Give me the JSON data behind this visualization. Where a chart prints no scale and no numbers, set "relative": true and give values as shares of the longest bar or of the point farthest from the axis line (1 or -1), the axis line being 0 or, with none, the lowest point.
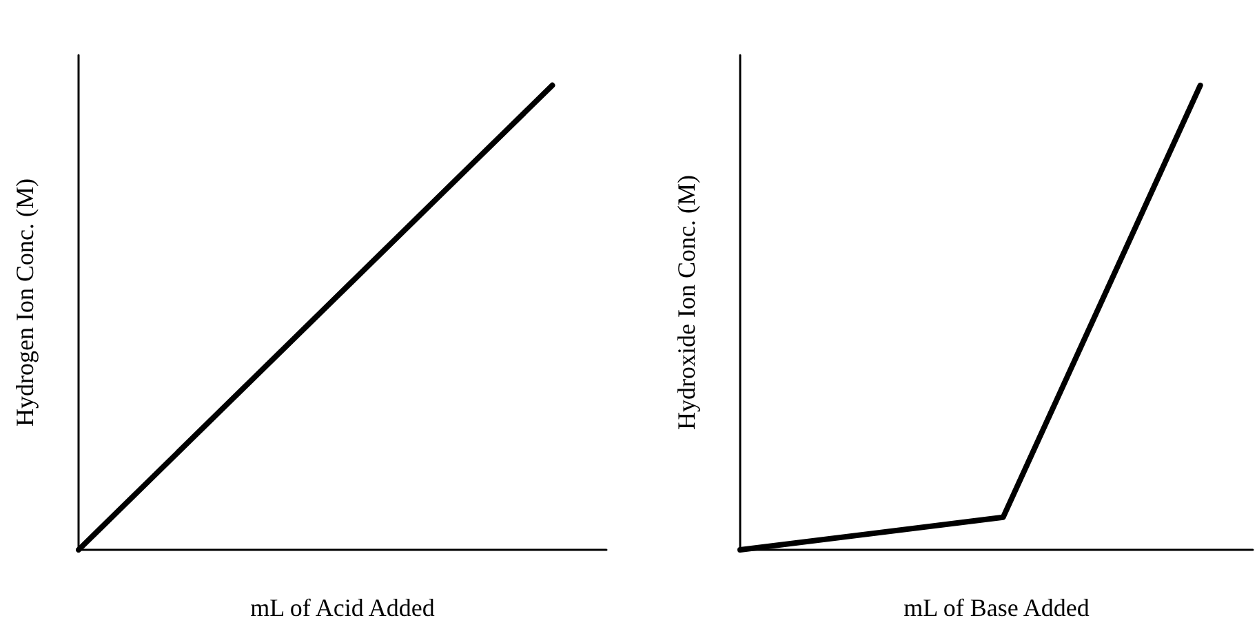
{
  "chart_data": [
    {
      "type": "line",
      "relative": true,
      "xlabel": "mL of Acid Added",
      "ylabel": "Hydrogen Ion Conc. (M)",
      "marker": "none",
      "grid": false,
      "categories": [
        null,
        null,
        null,
        null,
        null,
        null,
        null,
        null,
        null,
        null,
        null,
        null,
        null,
        null,
        null,
        null,
        null,
        null,
        null,
        null,
        null,
        null,
        null,
        null,
        null,
        null,
        null,
        null,
        null,
        null,
        null,
        null,
        null,
        null,
        null,
        null,
        null,
        null,
        null,
        null
      ],
      "series": [
        {
          "color": "#000000",
          "values": [
            0,
            null,
            null,
            null,
            null,
            null,
            null,
            null,
            null,
            null,
            null,
            null,
            null,
            null,
            null,
            null,
            null,
            null,
            null,
            null,
            null,
            null,
            null,
            null,
            null,
            null,
            null,
            null,
            null,
            null,
            null,
            null,
            null,
            null,
            null,
            1,
            null,
            null,
            null,
            null
          ]
        }
      ]
    },
    {
      "type": "line",
      "relative": true,
      "xlabel": "mL of Base Added",
      "ylabel": "Hydroxide Ion Conc. (M)",
      "marker": "none",
      "grid": false,
      "categories": [
        null,
        null,
        null,
        null,
        null,
        null,
        null,
        null,
        null,
        null,
        null,
        null,
        null,
        null,
        null,
        null,
        null,
        null,
        null,
        null,
        null,
        null,
        null,
        null,
        null,
        null,
        null,
        null,
        null,
        null,
        null,
        null,
        null,
        null,
        null,
        null,
        null,
        null,
        null,
        null
      ],
      "series": [
        {
          "color": "#000000",
          "values": [
            0,
            null,
            null,
            null,
            null,
            null,
            null,
            null,
            null,
            null,
            null,
            null,
            null,
            null,
            null,
            null,
            null,
            null,
            null,
            null,
            0.07,
            null,
            null,
            null,
            null,
            null,
            null,
            null,
            null,
            null,
            null,
            null,
            null,
            null,
            null,
            1,
            null,
            null,
            null,
            null
          ]
        }
      ]
    }
  ]
}
